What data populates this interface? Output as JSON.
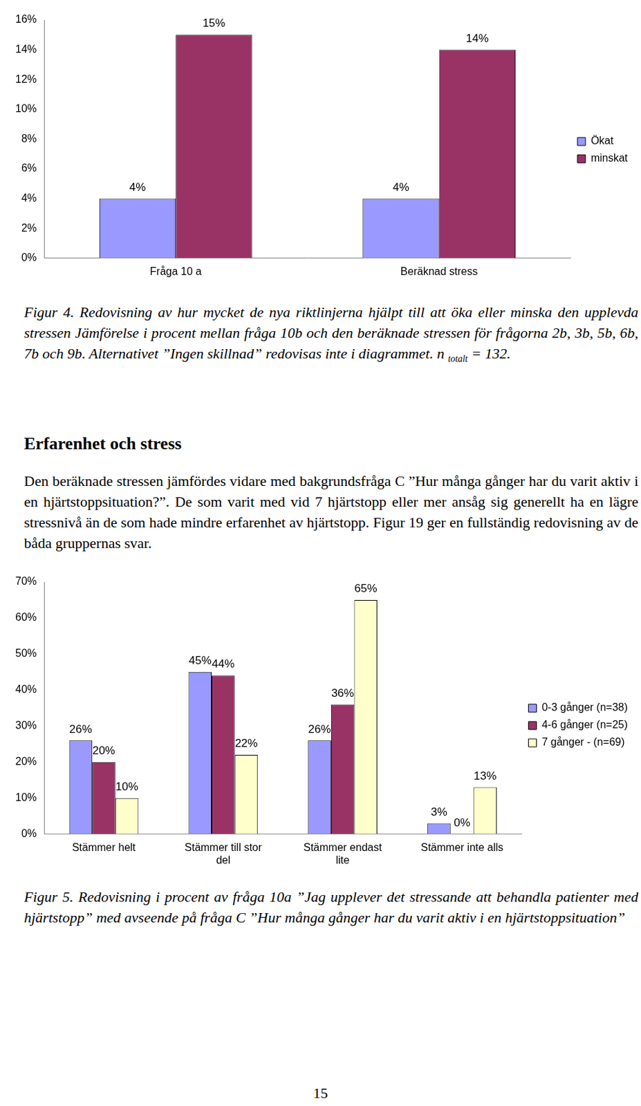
{
  "chart_data": [
    {
      "type": "bar",
      "categories": [
        "Fråga 10 a",
        "Beräknad stress"
      ],
      "series": [
        {
          "name": "Ökat",
          "color": "#9999ff",
          "values": [
            4,
            4
          ],
          "value_labels": [
            "4%",
            "4%"
          ]
        },
        {
          "name": "minskat",
          "color": "#993366",
          "values": [
            15,
            14
          ],
          "value_labels": [
            "15%",
            "14%"
          ]
        }
      ],
      "ylim": [
        0,
        16
      ],
      "yticks": [
        {
          "value": 0,
          "label": "0%"
        },
        {
          "value": 2,
          "label": "2%"
        },
        {
          "value": 4,
          "label": "4%"
        },
        {
          "value": 6,
          "label": "6%"
        },
        {
          "value": 8,
          "label": "8%"
        },
        {
          "value": 10,
          "label": "10%"
        },
        {
          "value": 12,
          "label": "12%"
        },
        {
          "value": 14,
          "label": "14%"
        },
        {
          "value": 16,
          "label": "16%"
        }
      ],
      "grid": false,
      "legend": "right",
      "data_labels": true
    },
    {
      "type": "bar",
      "categories": [
        "Stämmer helt",
        "Stämmer till stor del",
        "Stämmer endast lite",
        "Stämmer inte alls"
      ],
      "series": [
        {
          "name": "0-3 gånger (n=38)",
          "color": "#9999ff",
          "values": [
            26,
            45,
            26,
            3
          ],
          "value_labels": [
            "26%",
            "45%",
            "26%",
            "3%"
          ]
        },
        {
          "name": "4-6 gånger (n=25)",
          "color": "#993366",
          "values": [
            20,
            44,
            36,
            0
          ],
          "value_labels": [
            "20%",
            "44%",
            "36%",
            "0%"
          ]
        },
        {
          "name": "7 gånger - (n=69)",
          "color": "#ffffcc",
          "values": [
            10,
            22,
            65,
            13
          ],
          "value_labels": [
            "10%",
            "22%",
            "65%",
            "13%"
          ]
        }
      ],
      "ylim": [
        0,
        70
      ],
      "yticks": [
        {
          "value": 0,
          "label": "0%"
        },
        {
          "value": 10,
          "label": "10%"
        },
        {
          "value": 20,
          "label": "20%"
        },
        {
          "value": 30,
          "label": "30%"
        },
        {
          "value": 40,
          "label": "40%"
        },
        {
          "value": 50,
          "label": "50%"
        },
        {
          "value": 60,
          "label": "60%"
        },
        {
          "value": 70,
          "label": "70%"
        }
      ],
      "grid": false,
      "legend": "right",
      "data_labels": true
    }
  ],
  "document": {
    "figure4_caption": {
      "text": "Figur 4. Redovisning av hur mycket de nya riktlinjerna hjälpt till att öka eller minska den upplevda stressen Jämförelse i procent mellan fråga 10b och den beräknade stressen för frågorna 2b, 3b, 5b, 6b, 7b och 9b. Alternativet ”Ingen skillnad” redovisas inte i diagrammet. n",
      "subscript": "totalt",
      "after": " = 132."
    },
    "heading": "Erfarenhet och stress",
    "paragraph": "Den beräknade stressen jämfördes vidare med bakgrundsfråga C ”Hur många gånger har du varit aktiv i en hjärtstoppsituation?”. De som varit med vid 7 hjärtstopp eller mer ansåg sig generellt ha en lägre stressnivå än de som hade mindre erfarenhet av hjärtstopp. Figur 19 ger en fullständig redovisning av de båda gruppernas svar.",
    "figure5_caption": "Figur 5. Redovisning i procent av fråga 10a ”Jag upplever det stressande att behandla patienter med hjärtstopp” med avseende på fråga C ”Hur många gånger har du varit aktiv i en hjärtstoppsituation”",
    "page_number": "15"
  }
}
